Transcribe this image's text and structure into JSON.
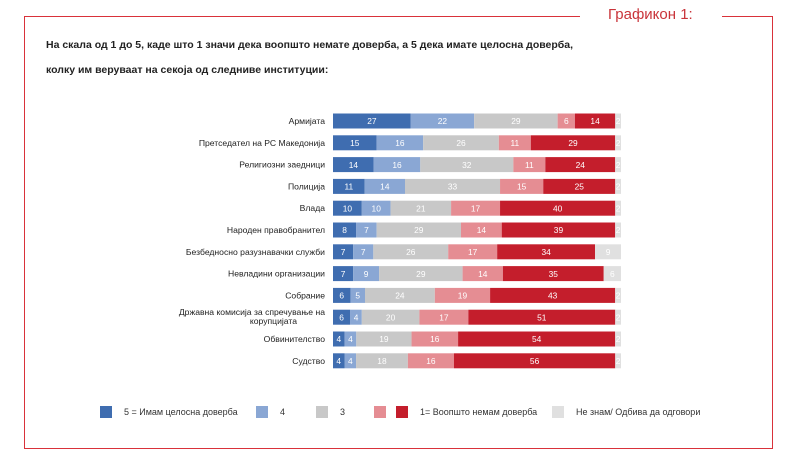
{
  "figure_label": "Графикон 1:",
  "question_line1": "На скала од 1 до 5, каде што 1 значи дека воопшто немате доверба, а 5 дека имате целосна доверба,",
  "question_line2": "колку им веруваат на секоја од следниве институции:",
  "colors": {
    "s5": "#3f6db0",
    "s4": "#8aa7d4",
    "s3": "#c8c8c8",
    "s2": "#e58d93",
    "s1": "#c41e2c",
    "dk": "#e0e0e0",
    "frame": "#d9323a"
  },
  "chart_data": {
    "type": "bar",
    "orientation": "horizontal",
    "stacked": true,
    "categories": [
      "Армијата",
      "Претседател на РС Македонија",
      "Религиозни заедници",
      "Полиција",
      "Влада",
      "Народен правобранител",
      "Безбедносно разузнавачки служби",
      "Невладини организации",
      "Собрание",
      "Државна комисија за спречување на корупцијата",
      "Обвинителство",
      "Судство"
    ],
    "series": [
      {
        "name": "5 = Имам целосна доверба",
        "values": [
          27,
          15,
          14,
          11,
          10,
          8,
          7,
          7,
          6,
          6,
          4,
          4
        ]
      },
      {
        "name": "4",
        "values": [
          22,
          16,
          16,
          14,
          10,
          7,
          7,
          9,
          5,
          4,
          4,
          4
        ]
      },
      {
        "name": "3",
        "values": [
          29,
          26,
          32,
          33,
          21,
          29,
          26,
          29,
          24,
          20,
          19,
          18
        ]
      },
      {
        "name": "2",
        "values": [
          6,
          11,
          11,
          15,
          17,
          14,
          17,
          14,
          19,
          17,
          16,
          16
        ]
      },
      {
        "name": "1= Воопшто немам доверба",
        "values": [
          14,
          29,
          24,
          25,
          40,
          39,
          34,
          35,
          43,
          51,
          54,
          56
        ]
      },
      {
        "name": "Не знам/ Одбива да одговори",
        "values": [
          2,
          2,
          2,
          2,
          2,
          2,
          9,
          6,
          2,
          2,
          2,
          2
        ]
      }
    ],
    "value_labels_shown": true,
    "legend_position": "bottom"
  }
}
